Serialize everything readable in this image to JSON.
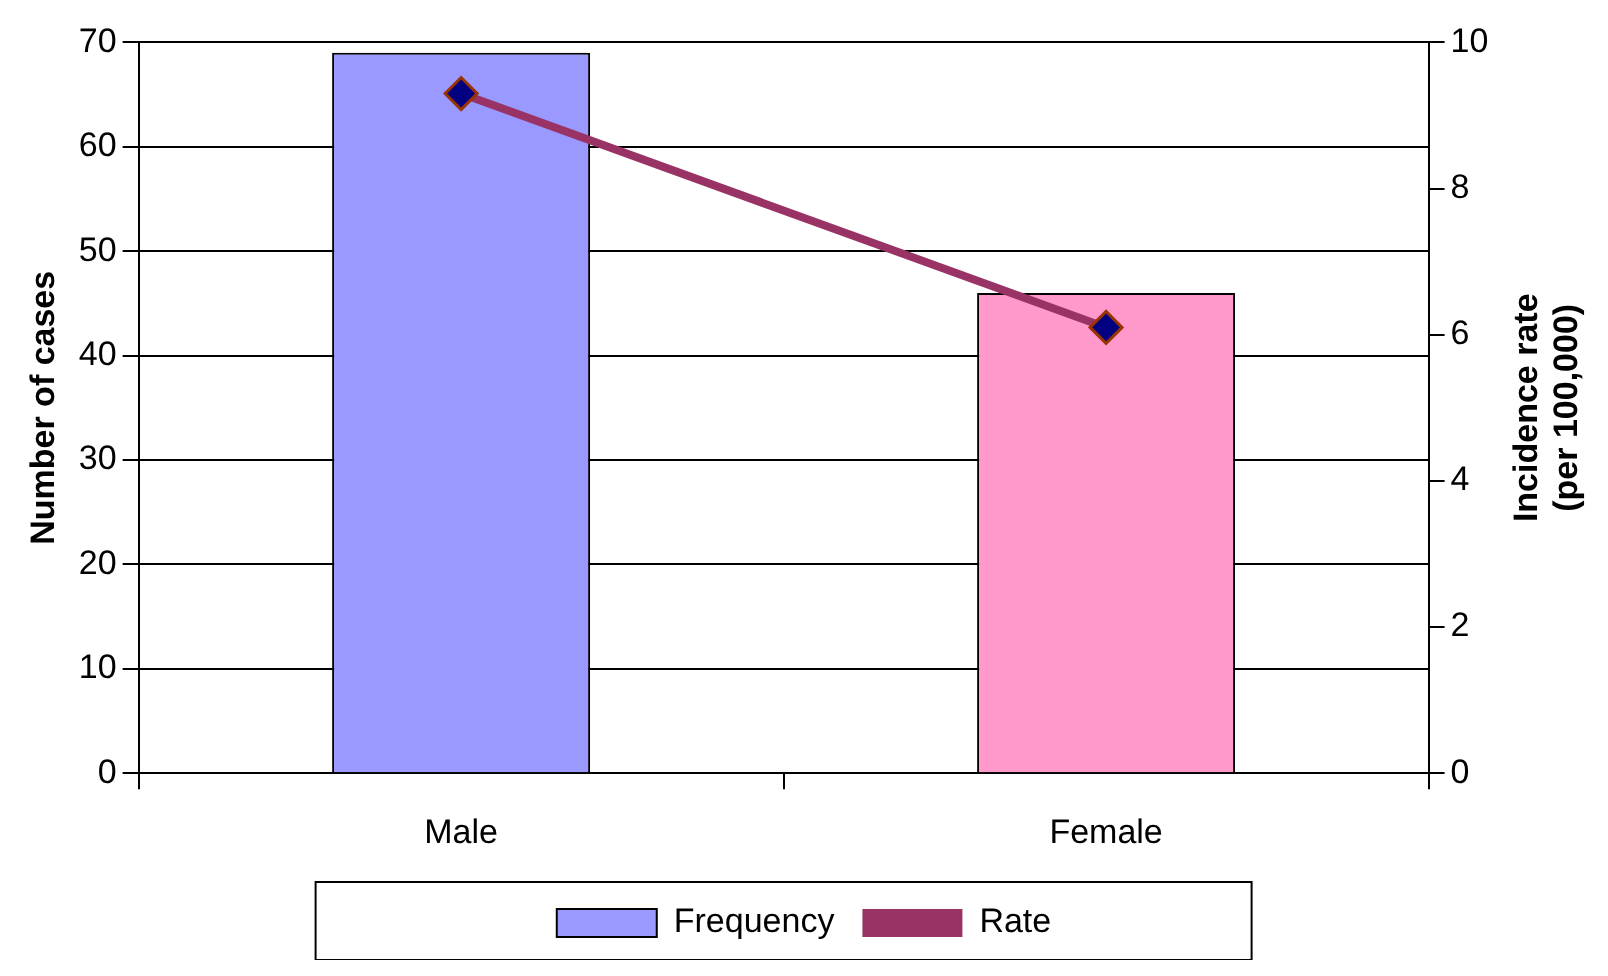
{
  "chart_data": {
    "type": "bar",
    "categories": [
      "Male",
      "Female"
    ],
    "ylabel": "Number of cases",
    "y2label": "Incidence rate\n(per 100,000)",
    "series": [
      {
        "name": "Frequency",
        "colors": [
          "#9999ff",
          "#ff99cc"
        ],
        "values": [
          69,
          46
        ]
      },
      {
        "name": "Rate",
        "type": "line",
        "axis": "y2",
        "color": "#993366",
        "values": [
          9.3,
          6.1
        ]
      }
    ],
    "ylim": [
      0,
      70
    ],
    "yticks": [
      0,
      10,
      20,
      30,
      40,
      50,
      60,
      70
    ],
    "y2lim": [
      0,
      10
    ],
    "y2ticks": [
      0,
      2,
      4,
      6,
      8,
      10
    ],
    "grid": "y",
    "legend": "bottom",
    "marker": "diamond"
  }
}
